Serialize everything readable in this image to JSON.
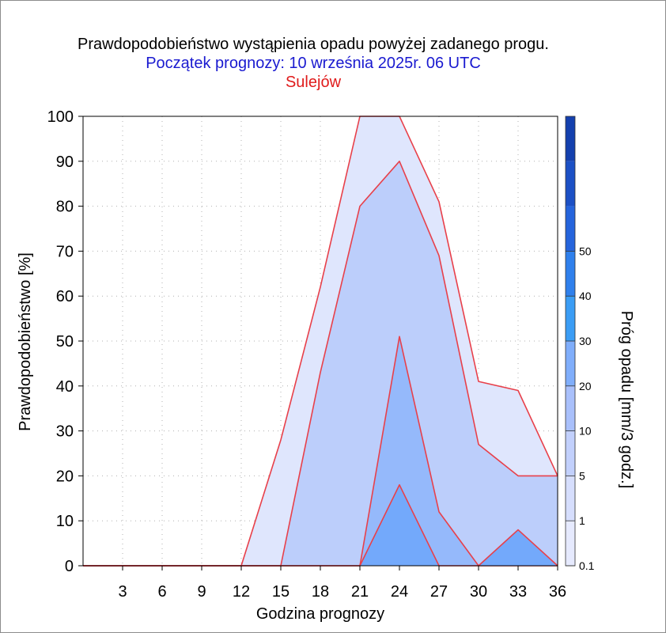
{
  "title": "Prawdopodobieństwo wystąpienia opadu powyżej zadanego progu.",
  "subtitle": "Początek prognozy: 10 września 2025r. 06 UTC",
  "location": "Sulejów",
  "chart_data": {
    "type": "area",
    "title": "Prawdopodobieństwo wystąpienia opadu powyżej zadanego progu.",
    "subtitle": "Początek prognozy: 10 września 2025r. 06 UTC",
    "location": "Sulejów",
    "xlabel": "Godzina prognozy",
    "ylabel": "Prawdopodobieństwo [%]",
    "colorbar_label": "Próg opadu [mm/3 godz.]",
    "xlim": [
      0,
      36
    ],
    "ylim": [
      0,
      100
    ],
    "x": [
      0,
      3,
      6,
      9,
      12,
      15,
      18,
      21,
      24,
      27,
      30,
      33,
      36
    ],
    "x_ticks": [
      "3",
      "6",
      "9",
      "12",
      "15",
      "18",
      "21",
      "24",
      "27",
      "30",
      "33",
      "36"
    ],
    "y_ticks": [
      "0",
      "10",
      "20",
      "30",
      "40",
      "50",
      "60",
      "70",
      "80",
      "90",
      "100"
    ],
    "grid": true,
    "colorbar_ticks": [
      "0.1",
      "1",
      "5",
      "10",
      "20",
      "30",
      "40",
      "50"
    ],
    "colorbar_colors": [
      "#e6eafe",
      "#d6defd",
      "#c2d0fc",
      "#a9c0fb",
      "#80aefb",
      "#3b9df5",
      "#2f80ec",
      "#2564dc",
      "#1c50c5",
      "#1440ae"
    ],
    "series": [
      {
        "threshold": "0.1",
        "color": "#dfe6fd",
        "values": [
          0,
          0,
          0,
          0,
          0,
          28,
          62,
          100,
          100,
          81,
          41,
          39,
          20
        ]
      },
      {
        "threshold": "1",
        "color": "#bccefb",
        "values": [
          0,
          0,
          0,
          0,
          0,
          0,
          43,
          80,
          90,
          69,
          27,
          20,
          20
        ]
      },
      {
        "threshold": "5",
        "color": "#95b9fb",
        "values": [
          0,
          0,
          0,
          0,
          0,
          0,
          0,
          0,
          51,
          12,
          0,
          0,
          0
        ]
      },
      {
        "threshold": "10",
        "color": "#73a9fb",
        "values": [
          0,
          0,
          0,
          0,
          0,
          0,
          0,
          0,
          18,
          0,
          0,
          8,
          0
        ]
      }
    ]
  }
}
